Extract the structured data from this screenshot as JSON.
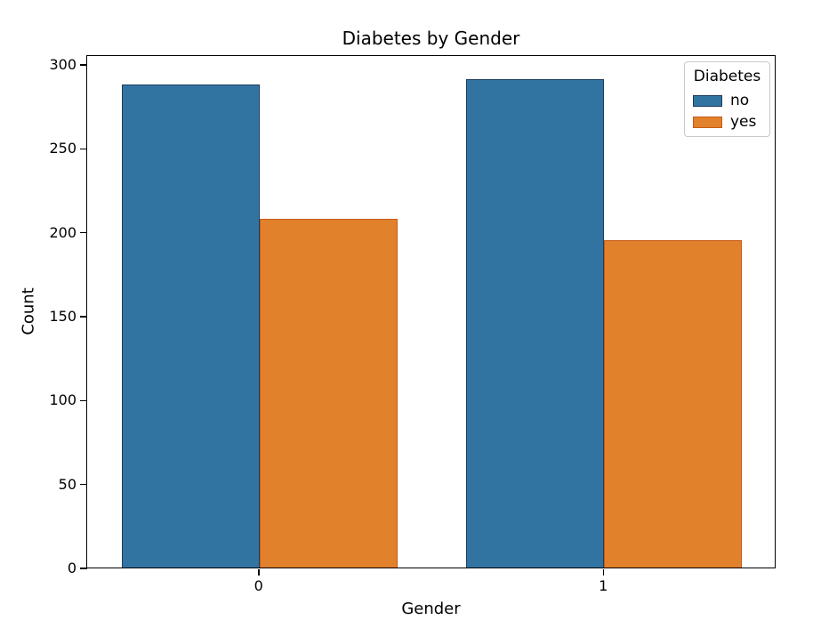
{
  "chart_data": {
    "type": "bar",
    "title": "Diabetes by Gender",
    "xlabel": "Gender",
    "ylabel": "Count",
    "categories": [
      "0",
      "1"
    ],
    "series": [
      {
        "name": "no",
        "values": [
          288,
          291
        ],
        "color": "#3274a1",
        "edge_color": "#1c3c5f"
      },
      {
        "name": "yes",
        "values": [
          208,
          195
        ],
        "color": "#e1812c",
        "edge_color": "#c85a19"
      }
    ],
    "ylim": [
      0,
      305.8
    ],
    "yticks": [
      0,
      50,
      100,
      150,
      200,
      250,
      300
    ],
    "legend": {
      "title": "Diabetes",
      "entries": [
        "no",
        "yes"
      ],
      "position": "upper-right"
    },
    "grid": false,
    "background": "#ffffff",
    "spine_color": "#000000",
    "text_color": "#000000"
  }
}
